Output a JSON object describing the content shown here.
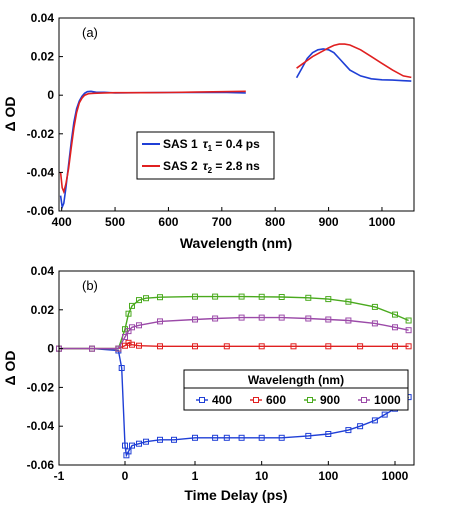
{
  "colors": {
    "blue": "#1f3fd6",
    "red": "#e02020",
    "green": "#4aaa1e",
    "purple": "#9b4aa8"
  },
  "chart_data": [
    {
      "type": "line",
      "panel_label": "(a)",
      "xlabel": "Wavelength (nm)",
      "ylabel": "Δ OD",
      "xlim": [
        395,
        1060
      ],
      "ylim": [
        -0.06,
        0.04
      ],
      "xticks": [
        400,
        500,
        600,
        700,
        800,
        900,
        1000
      ],
      "yticks": [
        -0.06,
        -0.04,
        -0.02,
        0,
        0.02,
        0.04
      ],
      "ytick_labels": [
        "-0.06",
        "-0.04",
        "-0.02",
        "0",
        "0.02",
        "0.04"
      ],
      "legend": {
        "placement": "center",
        "entries": [
          {
            "sas": "SAS 1",
            "tau": "τ",
            "sub": "1",
            "value": " = 0.4 ps",
            "color": "#1f3fd6"
          },
          {
            "sas": "SAS 2",
            "tau": "τ",
            "sub": "2",
            "value": " = 2.8 ns",
            "color": "#e02020"
          }
        ]
      },
      "series": [
        {
          "name": "SAS 1",
          "color": "#1f3fd6",
          "segments": [
            {
              "x": [
                398,
                401,
                404,
                408,
                413,
                418,
                423,
                428,
                433,
                438,
                443,
                448,
                455,
                465,
                480,
                500,
                550,
                600,
                650,
                700,
                745
              ],
              "y": [
                -0.052,
                -0.058,
                -0.056,
                -0.048,
                -0.036,
                -0.024,
                -0.014,
                -0.007,
                -0.003,
                -0.0005,
                0.001,
                0.0018,
                0.002,
                0.0015,
                0.0015,
                0.0012,
                0.0013,
                0.0014,
                0.0014,
                0.0015,
                0.0012
              ]
            },
            {
              "x": [
                840,
                850,
                860,
                870,
                880,
                890,
                900,
                910,
                920,
                930,
                940,
                960,
                980,
                1000,
                1020,
                1040,
                1055
              ],
              "y": [
                0.009,
                0.014,
                0.019,
                0.022,
                0.0235,
                0.024,
                0.0235,
                0.022,
                0.019,
                0.016,
                0.013,
                0.01,
                0.0085,
                0.008,
                0.0078,
                0.0075,
                0.0073
              ]
            }
          ]
        },
        {
          "name": "SAS 2",
          "color": "#e02020",
          "segments": [
            {
              "x": [
                398,
                401,
                404,
                408,
                413,
                418,
                423,
                428,
                433,
                438,
                443,
                450,
                460,
                480,
                500,
                550,
                600,
                650,
                700,
                745
              ],
              "y": [
                -0.04,
                -0.048,
                -0.05,
                -0.046,
                -0.038,
                -0.027,
                -0.017,
                -0.009,
                -0.004,
                -0.0015,
                0.0,
                0.0008,
                0.001,
                0.0012,
                0.0013,
                0.0013,
                0.0014,
                0.0016,
                0.0018,
                0.002
              ]
            },
            {
              "x": [
                840,
                850,
                860,
                870,
                880,
                890,
                900,
                910,
                920,
                930,
                940,
                960,
                980,
                1000,
                1020,
                1040,
                1055
              ],
              "y": [
                0.014,
                0.016,
                0.018,
                0.02,
                0.0215,
                0.023,
                0.0245,
                0.0258,
                0.0265,
                0.0265,
                0.026,
                0.0235,
                0.02,
                0.0165,
                0.013,
                0.01,
                0.0092
              ]
            }
          ]
        }
      ]
    },
    {
      "type": "scatter",
      "panel_label": "(b)",
      "xlabel": "Time Delay (ps)",
      "ylabel": "Δ OD",
      "xlim": [
        -1,
        1700
      ],
      "ylim": [
        -0.06,
        0.04
      ],
      "xticks": [
        -1,
        0,
        1,
        10,
        100,
        1000
      ],
      "yticks": [
        -0.06,
        -0.04,
        -0.02,
        0,
        0.02,
        0.04
      ],
      "ytick_labels": [
        "-0.06",
        "-0.04",
        "-0.02",
        "0",
        "0.02",
        "0.04"
      ],
      "legend": {
        "placement": "center-right",
        "title": "Wavelength (nm)",
        "entries": [
          "400",
          "600",
          "900",
          "1000"
        ]
      },
      "series": [
        {
          "name": "400",
          "color": "#1f3fd6",
          "data": [
            [
              -1,
              0
            ],
            [
              -0.5,
              0
            ],
            [
              -0.1,
              -0.001
            ],
            [
              -0.05,
              -0.01
            ],
            [
              0,
              -0.05
            ],
            [
              0.02,
              -0.055
            ],
            [
              0.05,
              -0.053
            ],
            [
              0.1,
              -0.05
            ],
            [
              0.2,
              -0.049
            ],
            [
              0.3,
              -0.048
            ],
            [
              0.5,
              -0.047
            ],
            [
              0.7,
              -0.047
            ],
            [
              1,
              -0.046
            ],
            [
              2,
              -0.046
            ],
            [
              3,
              -0.046
            ],
            [
              5,
              -0.046
            ],
            [
              10,
              -0.046
            ],
            [
              20,
              -0.046
            ],
            [
              50,
              -0.045
            ],
            [
              100,
              -0.044
            ],
            [
              200,
              -0.042
            ],
            [
              300,
              -0.04
            ],
            [
              500,
              -0.037
            ],
            [
              700,
              -0.034
            ],
            [
              1000,
              -0.031
            ],
            [
              1300,
              -0.028
            ],
            [
              1600,
              -0.025
            ]
          ]
        },
        {
          "name": "600",
          "color": "#e02020",
          "data": [
            [
              -1,
              0
            ],
            [
              -0.5,
              0
            ],
            [
              -0.1,
              0
            ],
            [
              0,
              0.0015
            ],
            [
              0.05,
              0.003
            ],
            [
              0.1,
              0.002
            ],
            [
              0.2,
              0.0015
            ],
            [
              0.5,
              0.0012
            ],
            [
              1,
              0.0012
            ],
            [
              3,
              0.0012
            ],
            [
              10,
              0.0012
            ],
            [
              30,
              0.0012
            ],
            [
              100,
              0.0012
            ],
            [
              300,
              0.0012
            ],
            [
              1000,
              0.0012
            ],
            [
              1600,
              0.0012
            ]
          ]
        },
        {
          "name": "900",
          "color": "#4aaa1e",
          "data": [
            [
              -1,
              0
            ],
            [
              -0.5,
              0
            ],
            [
              -0.1,
              0
            ],
            [
              0,
              0.01
            ],
            [
              0.05,
              0.018
            ],
            [
              0.1,
              0.022
            ],
            [
              0.2,
              0.025
            ],
            [
              0.3,
              0.026
            ],
            [
              0.5,
              0.0265
            ],
            [
              1,
              0.0268
            ],
            [
              2,
              0.0268
            ],
            [
              5,
              0.0268
            ],
            [
              10,
              0.0267
            ],
            [
              20,
              0.0266
            ],
            [
              50,
              0.0262
            ],
            [
              100,
              0.0255
            ],
            [
              200,
              0.0242
            ],
            [
              500,
              0.0215
            ],
            [
              1000,
              0.0175
            ],
            [
              1600,
              0.0145
            ]
          ]
        },
        {
          "name": "1000",
          "color": "#9b4aa8",
          "data": [
            [
              -1,
              0
            ],
            [
              -0.5,
              0
            ],
            [
              -0.1,
              0
            ],
            [
              0,
              0.006
            ],
            [
              0.05,
              0.009
            ],
            [
              0.1,
              0.011
            ],
            [
              0.2,
              0.012
            ],
            [
              0.5,
              0.014
            ],
            [
              1,
              0.015
            ],
            [
              2,
              0.0155
            ],
            [
              5,
              0.016
            ],
            [
              10,
              0.016
            ],
            [
              20,
              0.016
            ],
            [
              50,
              0.0155
            ],
            [
              100,
              0.015
            ],
            [
              200,
              0.0145
            ],
            [
              500,
              0.013
            ],
            [
              1000,
              0.011
            ],
            [
              1600,
              0.0095
            ]
          ]
        }
      ]
    }
  ]
}
